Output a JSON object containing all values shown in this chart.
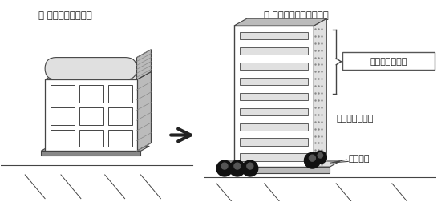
{
  "bg_color": "#ffffff",
  "title_left": "（ 通常の建築計画）",
  "title_right": "（ 総合設計制度で建築）",
  "label_youseki": "容積率の割増し",
  "label_shasen": "斜線制限の緩和",
  "label_koukai": "公開空地",
  "line_color": "#444444",
  "dark": "#222222",
  "gray_light": "#e0e0e0",
  "gray_mid": "#bbbbbb",
  "gray_dark": "#888888",
  "white": "#ffffff",
  "hatch_color": "#aaaaaa"
}
